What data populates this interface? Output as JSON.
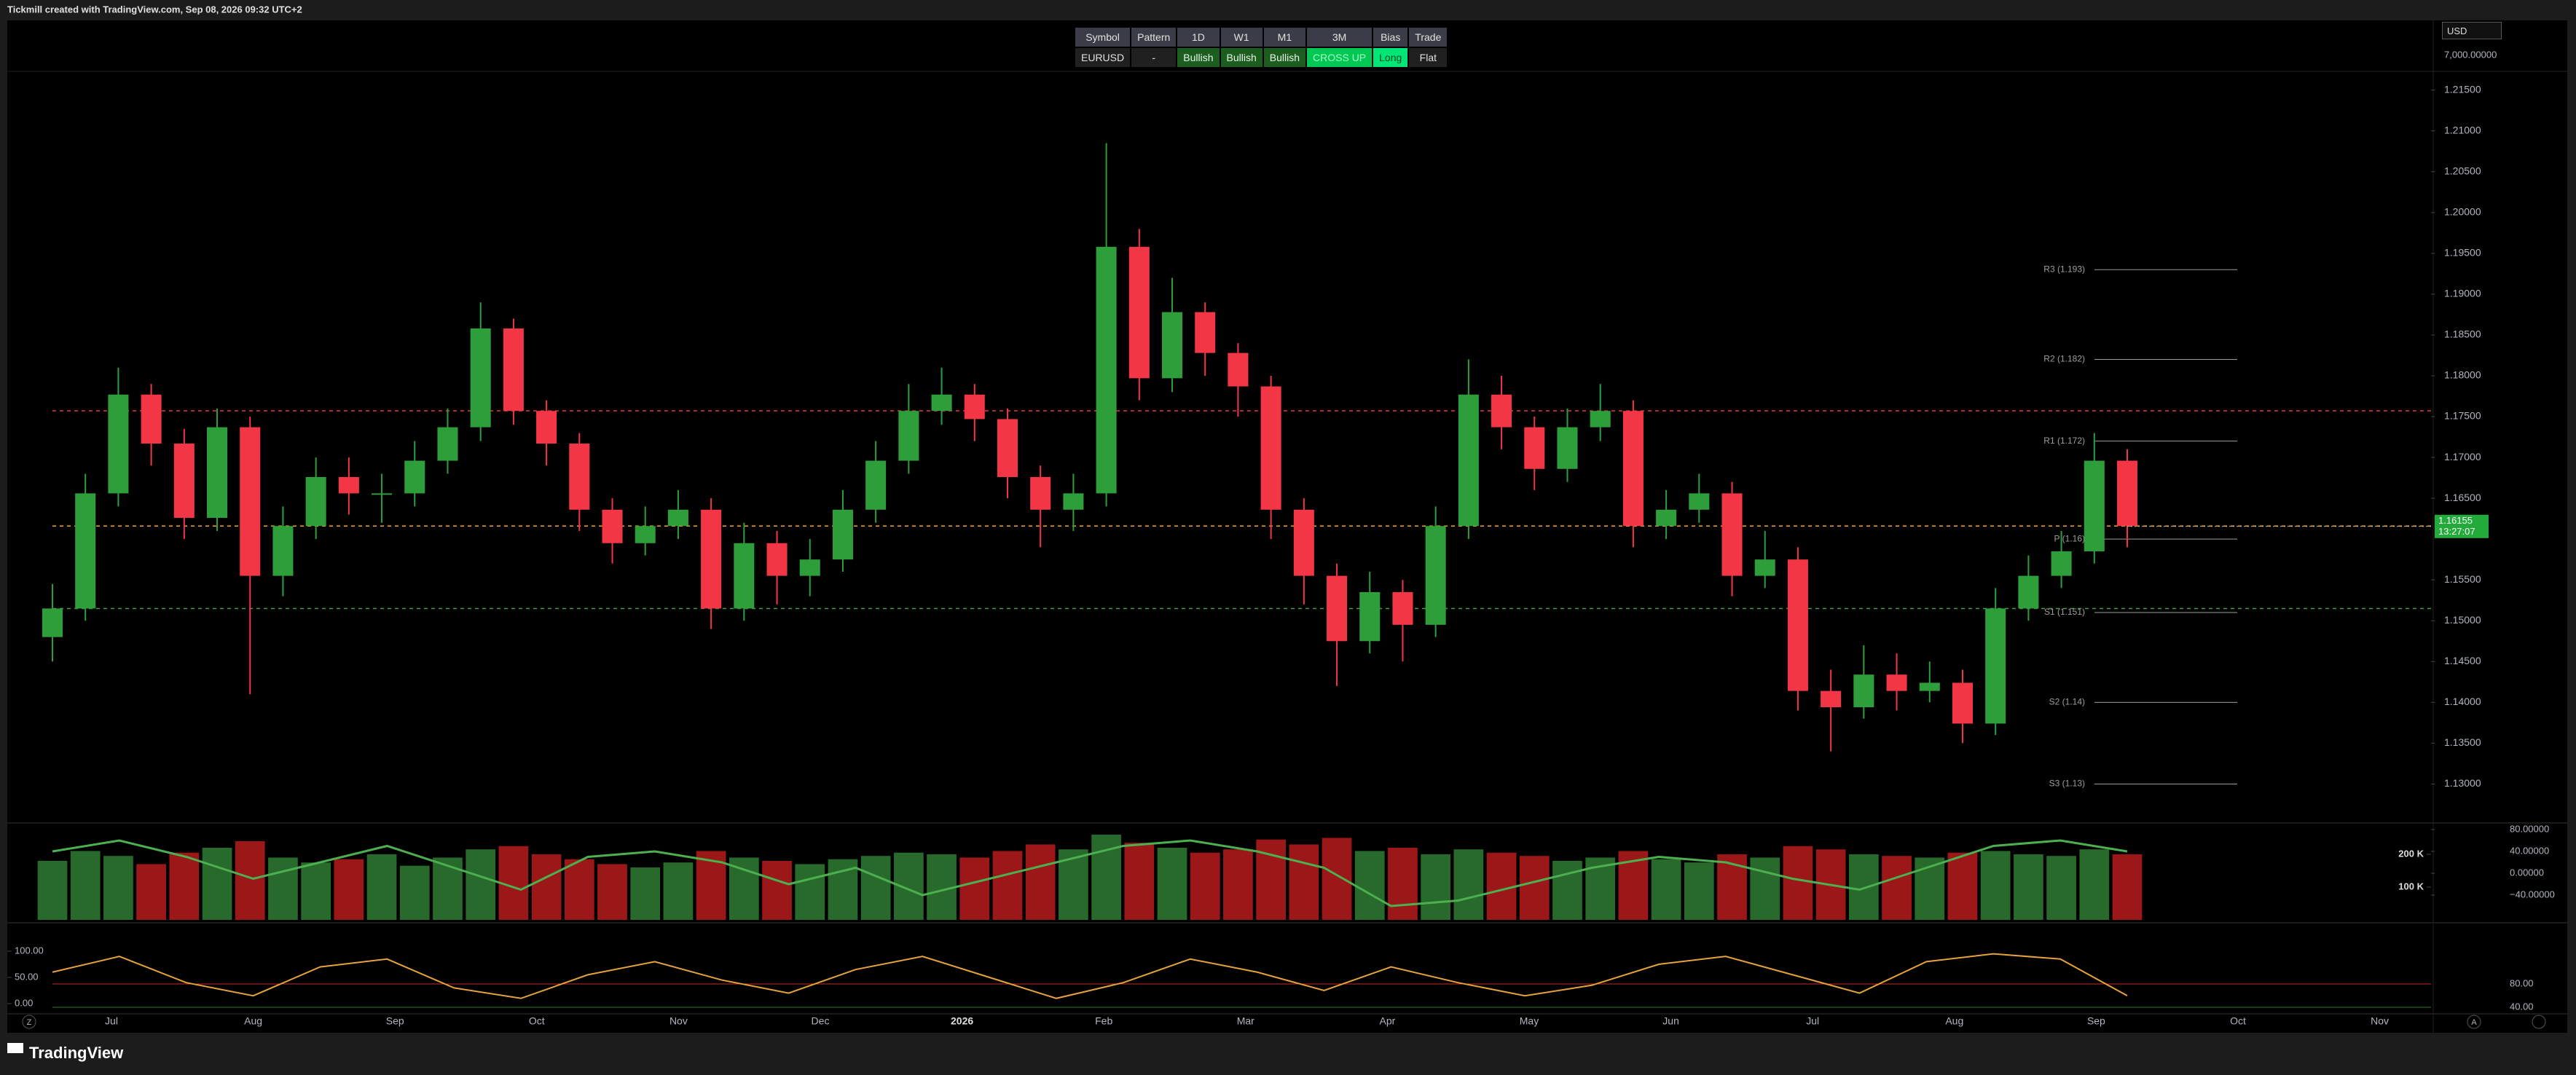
{
  "header": {
    "text": "Tickmill created with TradingView.com, Sep 08, 2026 09:32 UTC+2"
  },
  "table": {
    "headers": [
      "Symbol",
      "Pattern",
      "1D",
      "W1",
      "M1",
      "3M",
      "Bias",
      "Trade"
    ],
    "row": [
      "EURUSD",
      "-",
      "Bullish",
      "Bullish",
      "Bullish",
      "CROSS UP",
      "Long",
      "Flat"
    ]
  },
  "currency": "USD",
  "scale_top_label": "7,000.00000",
  "buttons": {
    "left": "Z",
    "right": "A"
  },
  "footer": {
    "brand": "TradingView"
  },
  "chart_data": {
    "type": "candlestick",
    "categories": [
      "Jul",
      "Aug",
      "Sep",
      "Oct",
      "Nov",
      "Dec",
      "2026",
      "Feb",
      "Mar",
      "Apr",
      "May",
      "Jun",
      "Jul",
      "Aug",
      "Sep",
      "Oct",
      "Nov"
    ],
    "ylim": [
      1.1254,
      1.2172
    ],
    "yticks": [
      {
        "value": 1.215,
        "label": "1.21500"
      },
      {
        "value": 1.21,
        "label": "1.21000"
      },
      {
        "value": 1.205,
        "label": "1.20500"
      },
      {
        "value": 1.2,
        "label": "1.20000"
      },
      {
        "value": 1.195,
        "label": "1.19500"
      },
      {
        "value": 1.19,
        "label": "1.19000"
      },
      {
        "value": 1.185,
        "label": "1.18500"
      },
      {
        "value": 1.18,
        "label": "1.18000"
      },
      {
        "value": 1.175,
        "label": "1.17500"
      },
      {
        "value": 1.17,
        "label": "1.17000"
      },
      {
        "value": 1.165,
        "label": "1.16500"
      },
      {
        "value": 1.155,
        "label": "1.15500"
      },
      {
        "value": 1.15,
        "label": "1.15000"
      },
      {
        "value": 1.145,
        "label": "1.14500"
      },
      {
        "value": 1.14,
        "label": "1.14000"
      },
      {
        "value": 1.135,
        "label": "1.13500"
      },
      {
        "value": 1.13,
        "label": "1.13000"
      }
    ],
    "up_color": "#2e9e3a",
    "down_color": "#f23645",
    "open": [
      1.148,
      1.1515,
      1.1656,
      1.1777,
      1.1717,
      1.1626,
      1.1737,
      1.1555,
      1.1616,
      1.1676,
      1.1656,
      1.1656,
      1.1696,
      1.1737,
      1.1858,
      1.1757,
      1.1717,
      1.1636,
      1.1595,
      1.1616,
      1.1636,
      1.1515,
      1.1595,
      1.1555,
      1.1575,
      1.1636,
      1.1696,
      1.1757,
      1.1777,
      1.1747,
      1.1676,
      1.1636,
      1.1656,
      1.1958,
      1.1797,
      1.1878,
      1.1828,
      1.1787,
      1.1636,
      1.1555,
      1.1475,
      1.1535,
      1.1495,
      1.1616,
      1.1777,
      1.1737,
      1.1686,
      1.1737,
      1.1757,
      1.1616,
      1.1636,
      1.1656,
      1.1555,
      1.1575,
      1.1414,
      1.1394,
      1.1434,
      1.1414,
      1.1424,
      1.1374,
      1.1515,
      1.1555,
      1.1585,
      1.1696
    ],
    "high": [
      1.1545,
      1.168,
      1.181,
      1.179,
      1.1735,
      1.176,
      1.175,
      1.164,
      1.17,
      1.17,
      1.168,
      1.172,
      1.176,
      1.189,
      1.187,
      1.177,
      1.173,
      1.165,
      1.164,
      1.166,
      1.165,
      1.162,
      1.161,
      1.16,
      1.166,
      1.172,
      1.179,
      1.181,
      1.179,
      1.176,
      1.169,
      1.168,
      1.2085,
      1.198,
      1.192,
      1.189,
      1.184,
      1.18,
      1.165,
      1.157,
      1.156,
      1.155,
      1.164,
      1.182,
      1.18,
      1.175,
      1.176,
      1.179,
      1.177,
      1.166,
      1.168,
      1.167,
      1.161,
      1.159,
      1.144,
      1.147,
      1.146,
      1.145,
      1.144,
      1.154,
      1.158,
      1.161,
      1.173,
      1.171
    ],
    "low": [
      1.145,
      1.15,
      1.164,
      1.169,
      1.16,
      1.161,
      1.141,
      1.153,
      1.16,
      1.163,
      1.162,
      1.164,
      1.168,
      1.172,
      1.174,
      1.169,
      1.161,
      1.157,
      1.158,
      1.16,
      1.149,
      1.15,
      1.152,
      1.153,
      1.156,
      1.162,
      1.168,
      1.174,
      1.172,
      1.165,
      1.159,
      1.161,
      1.164,
      1.177,
      1.178,
      1.18,
      1.175,
      1.16,
      1.152,
      1.142,
      1.146,
      1.145,
      1.148,
      1.16,
      1.171,
      1.166,
      1.167,
      1.172,
      1.159,
      1.16,
      1.162,
      1.153,
      1.154,
      1.139,
      1.134,
      1.138,
      1.139,
      1.14,
      1.135,
      1.136,
      1.15,
      1.154,
      1.157,
      1.159
    ],
    "close": [
      1.1515,
      1.1656,
      1.1777,
      1.1717,
      1.1626,
      1.1737,
      1.1555,
      1.1616,
      1.1676,
      1.1656,
      1.1656,
      1.1696,
      1.1737,
      1.1858,
      1.1757,
      1.1717,
      1.1636,
      1.1595,
      1.1616,
      1.1636,
      1.1515,
      1.1595,
      1.1555,
      1.1575,
      1.1636,
      1.1696,
      1.1757,
      1.1777,
      1.1747,
      1.1676,
      1.1636,
      1.1656,
      1.1958,
      1.1797,
      1.1878,
      1.1828,
      1.1787,
      1.1636,
      1.1555,
      1.1475,
      1.1535,
      1.1495,
      1.1616,
      1.1777,
      1.1737,
      1.1686,
      1.1737,
      1.1757,
      1.1616,
      1.1636,
      1.1656,
      1.1555,
      1.1575,
      1.1414,
      1.1394,
      1.1434,
      1.1414,
      1.1424,
      1.1374,
      1.1515,
      1.1555,
      1.1585,
      1.1696,
      1.1616
    ],
    "last_price": 1.16155,
    "countdown": "13:27:07",
    "pivots": [
      {
        "label": "R3 (1.193)",
        "value": 1.193
      },
      {
        "label": "R2 (1.182)",
        "value": 1.182
      },
      {
        "label": "R1 (1.172)",
        "value": 1.172
      },
      {
        "label": "P (1.16)",
        "value": 1.16
      },
      {
        "label": "S1 (1.151)",
        "value": 1.151
      },
      {
        "label": "S2 (1.14)",
        "value": 1.14
      },
      {
        "label": "S3 (1.13)",
        "value": 1.13
      }
    ],
    "levels": [
      {
        "value": 1.1757,
        "color": "#e53935"
      },
      {
        "value": 1.1616,
        "color": "#f5a623"
      },
      {
        "value": 1.1515,
        "color": "#43a047"
      }
    ],
    "volume": {
      "values": [
        180000,
        210000,
        195000,
        170000,
        205000,
        220000,
        240000,
        190000,
        175000,
        185000,
        200000,
        165000,
        190000,
        215000,
        225000,
        200000,
        185000,
        170000,
        160000,
        175000,
        210000,
        190000,
        180000,
        170000,
        185000,
        195000,
        205000,
        200000,
        190000,
        210000,
        230000,
        215000,
        260000,
        235000,
        220000,
        205000,
        215000,
        245000,
        230000,
        250000,
        210000,
        220000,
        200000,
        215000,
        205000,
        195000,
        180000,
        190000,
        210000,
        185000,
        175000,
        200000,
        190000,
        225000,
        215000,
        200000,
        195000,
        190000,
        205000,
        210000,
        200000,
        195000,
        215000,
        200000
      ],
      "ylim": [
        0,
        291000
      ],
      "yticks": [
        {
          "value": 100000,
          "label": "100 K"
        },
        {
          "value": 200000,
          "label": "200 K"
        }
      ]
    },
    "momentum": {
      "values": [
        40,
        60,
        30,
        -10,
        20,
        50,
        10,
        -30,
        30,
        40,
        20,
        -20,
        10,
        -40,
        -10,
        20,
        50,
        60,
        40,
        10,
        -60,
        -50,
        -20,
        10,
        30,
        20,
        -10,
        -30,
        10,
        50,
        60,
        40
      ],
      "y2lim": [
        -85.3,
        89.3
      ],
      "y2ticks": [
        {
          "value": 80,
          "label": "80.00000"
        },
        {
          "value": 40,
          "label": "40.00000"
        },
        {
          "value": 0,
          "label": "0.00000"
        },
        {
          "value": -40,
          "label": "−40.00000"
        }
      ],
      "color": "#4caf50"
    },
    "oscillator": {
      "values": [
        60,
        90,
        40,
        15,
        70,
        85,
        30,
        10,
        55,
        80,
        45,
        20,
        65,
        90,
        50,
        10,
        40,
        85,
        60,
        25,
        70,
        40,
        15,
        35,
        75,
        90,
        55,
        20,
        80,
        95,
        85,
        15
      ],
      "ylim": [
        -15.3,
        122.2
      ],
      "yticks": [
        {
          "value": 100,
          "label": "100.00"
        },
        {
          "value": 50,
          "label": "50.00"
        },
        {
          "value": 0,
          "label": "0.00"
        }
      ],
      "y2lim": [
        32.5,
        156.25
      ],
      "y2ticks": [
        {
          "value": 80,
          "label": "80.00"
        },
        {
          "value": 40,
          "label": "40.00"
        }
      ],
      "color": "#e6a23c"
    }
  }
}
